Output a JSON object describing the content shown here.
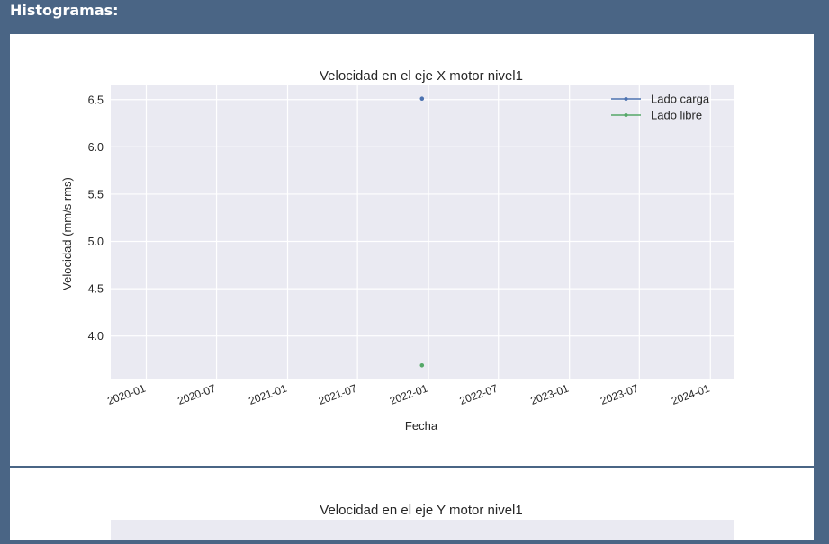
{
  "page": {
    "header": "Histogramas:"
  },
  "colors": {
    "background": "#4a6585",
    "plot_area": "#eaeaf2",
    "grid": "#ffffff",
    "series_carga": "#4c72b0",
    "series_libre": "#55a868"
  },
  "chart_data": [
    {
      "type": "line",
      "title": "Velocidad en el eje X motor nivel1",
      "xlabel": "Fecha",
      "ylabel": "Velocidad (mm/s rms)",
      "xlim": [
        "2019-10-01",
        "2024-03-01"
      ],
      "ylim": [
        3.55,
        6.65
      ],
      "x_ticks": [
        "2020-01",
        "2020-07",
        "2021-01",
        "2021-07",
        "2022-01",
        "2022-07",
        "2023-01",
        "2023-07",
        "2024-01"
      ],
      "y_ticks": [
        4.0,
        4.5,
        5.0,
        5.5,
        6.0,
        6.5
      ],
      "y_tick_labels": [
        "4.0",
        "4.5",
        "5.0",
        "5.5",
        "6.0",
        "6.5"
      ],
      "grid": true,
      "legend": "top-right",
      "series": [
        {
          "name": "Lado carga",
          "color": "#4c72b0",
          "points": [
            {
              "x": "2021-12-15",
              "y": 6.51
            }
          ]
        },
        {
          "name": "Lado libre",
          "color": "#55a868",
          "points": [
            {
              "x": "2021-12-15",
              "y": 3.69
            }
          ]
        }
      ]
    },
    {
      "type": "line",
      "title": "Velocidad en el eje Y motor nivel1"
    }
  ]
}
